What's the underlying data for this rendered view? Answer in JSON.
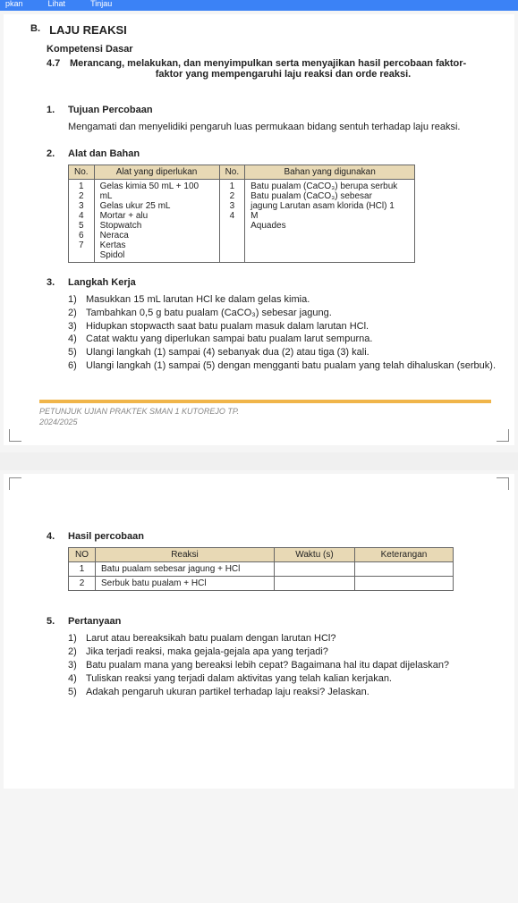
{
  "topbar": {
    "items": [
      "pkan",
      "Lihat",
      "Tinjau"
    ]
  },
  "header": {
    "letter": "B.",
    "title": "LAJU REAKSI",
    "kd_label": "Kompetensi Dasar",
    "kd_num": "4.7",
    "kd_line1": "Merancang, melakukan, dan menyimpulkan serta menyajikan hasil percobaan faktor-",
    "kd_line2": "faktor yang mempengaruhi laju reaksi dan orde reaksi."
  },
  "tujuan": {
    "num": "1.",
    "title": "Tujuan Percobaan",
    "body": "Mengamati dan menyelidiki pengaruh luas permukaan bidang sentuh terhadap laju reaksi."
  },
  "alat": {
    "num": "2.",
    "title": "Alat dan Bahan",
    "head_no": "No.",
    "head_alat": "Alat yang diperlukan",
    "head_bahan": "Bahan yang digunakan",
    "alat_nos": "1\n2\n3\n4\n5\n6\n7",
    "alat_items": "Gelas kimia 50 mL + 100\nmL\nGelas ukur 25 mL\nMortar + alu\nStopwatch\nNeraca\nKertas\nSpidol",
    "bahan_nos": "1\n2\n3\n4",
    "bahan_items": "Batu pualam (CaCO₃) berupa serbuk\nBatu pualam (CaCO₃) sebesar\njagung Larutan asam klorida (HCl) 1\nM\nAquades"
  },
  "langkah": {
    "num": "3.",
    "title": "Langkah Kerja",
    "items": [
      {
        "n": "1)",
        "t": "Masukkan 15 mL larutan HCl ke dalam gelas kimia."
      },
      {
        "n": "2)",
        "t": "Tambahkan 0,5 g batu pualam (CaCO₃) sebesar jagung."
      },
      {
        "n": "3)",
        "t": "Hidupkan stopwacth saat batu pualam masuk dalam larutan HCl."
      },
      {
        "n": "4)",
        "t": "Catat waktu yang diperlukan sampai batu pualam larut sempurna."
      },
      {
        "n": "5)",
        "t": "Ulangi langkah (1) sampai (4) sebanyak dua (2) atau tiga (3) kali."
      },
      {
        "n": "6)",
        "t": "Ulangi langkah (1) sampai (5) dengan mengganti batu pualam yang telah dihaluskan (serbuk)."
      }
    ]
  },
  "footer": {
    "line1": "PETUNJUK UJIAN PRAKTEK  SMAN 1 KUTOREJO TP.",
    "line2": "2024/2025"
  },
  "hasil": {
    "num": "4.",
    "title": "Hasil percobaan",
    "head_no": "NO",
    "head_reaksi": "Reaksi",
    "head_waktu": "Waktu (s)",
    "head_ket": "Keterangan",
    "rows": [
      {
        "n": "1",
        "r": "Batu pualam sebesar jagung + HCl",
        "w": "",
        "k": ""
      },
      {
        "n": "2",
        "r": "Serbuk batu pualam + HCl",
        "w": "",
        "k": ""
      }
    ]
  },
  "pertanyaan": {
    "num": "5.",
    "title": "Pertanyaan",
    "items": [
      {
        "n": "1)",
        "t": "Larut atau bereaksikah batu pualam dengan larutan HCl?"
      },
      {
        "n": "2)",
        "t": "Jika terjadi reaksi, maka gejala-gejala apa yang terjadi?"
      },
      {
        "n": "3)",
        "t": "Batu pualam mana yang bereaksi lebih cepat? Bagaimana hal itu dapat dijelaskan?"
      },
      {
        "n": "4)",
        "t": "Tuliskan reaksi yang terjadi dalam aktivitas yang telah kalian kerjakan."
      },
      {
        "n": "5)",
        "t": "Adakah pengaruh ukuran partikel terhadap laju reaksi? Jelaskan."
      }
    ]
  }
}
